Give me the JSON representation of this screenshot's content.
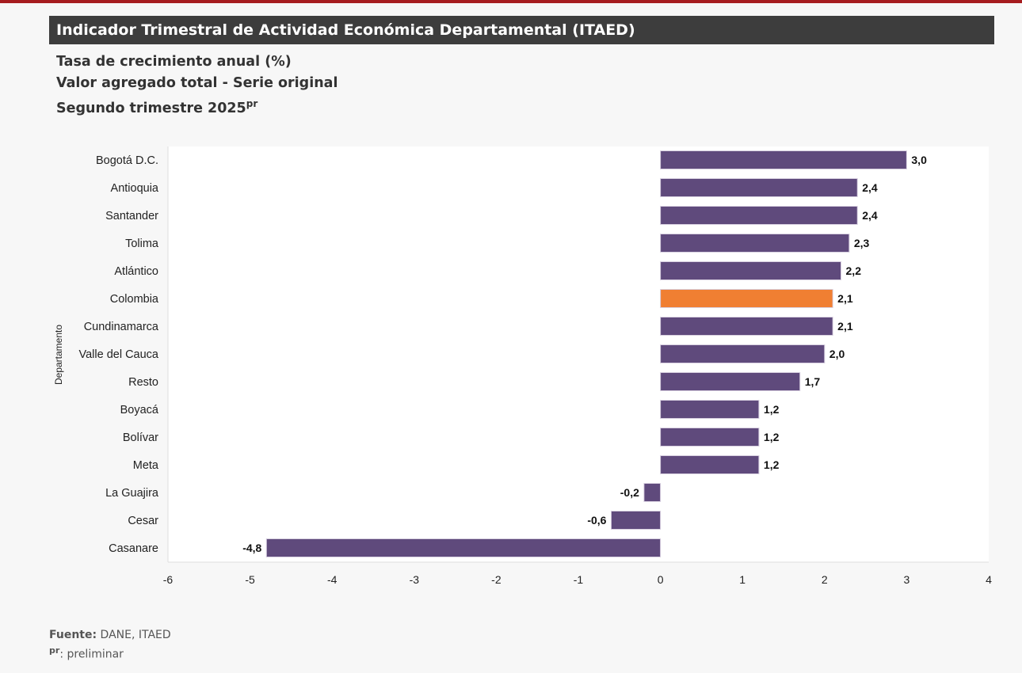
{
  "header": {
    "title": "Indicador Trimestral de Actividad Económica Departamental (ITAED)",
    "subtitle1": "Tasa de crecimiento anual (%)",
    "subtitle2": "Valor agregado total - Serie original",
    "subtitle3": "Segundo trimestre 2025",
    "subtitle3_sup": "pr"
  },
  "footer": {
    "source_label": "Fuente:",
    "source": " DANE, ITAED",
    "note_sup": "pr",
    "note": ": preliminar"
  },
  "colors": {
    "bar": "#5f4a7c",
    "highlight": "#f07f32",
    "accent": "#a61c1f"
  },
  "chart_data": {
    "type": "bar",
    "orientation": "horizontal",
    "ylabel": "Departamento",
    "xlim": [
      -6,
      4
    ],
    "xticks": [
      -6,
      -5,
      -4,
      -3,
      -2,
      -1,
      0,
      1,
      2,
      3,
      4
    ],
    "categories": [
      "Bogotá D.C.",
      "Antioquia",
      "Santander",
      "Tolima",
      "Atlántico",
      "Colombia",
      "Cundinamarca",
      "Valle del Cauca",
      "Resto",
      "Boyacá",
      "Bolívar",
      "Meta",
      "La Guajira",
      "Cesar",
      "Casanare"
    ],
    "values": [
      3.0,
      2.4,
      2.4,
      2.3,
      2.2,
      2.1,
      2.1,
      2.0,
      1.7,
      1.2,
      1.2,
      1.2,
      -0.2,
      -0.6,
      -4.8
    ],
    "labels": [
      "3,0",
      "2,4",
      "2,4",
      "2,3",
      "2,2",
      "2,1",
      "2,1",
      "2,0",
      "1,7",
      "1,2",
      "1,2",
      "1,2",
      "-0,2",
      "-0,6",
      "-4,8"
    ],
    "highlight": "Colombia",
    "grid": false
  }
}
